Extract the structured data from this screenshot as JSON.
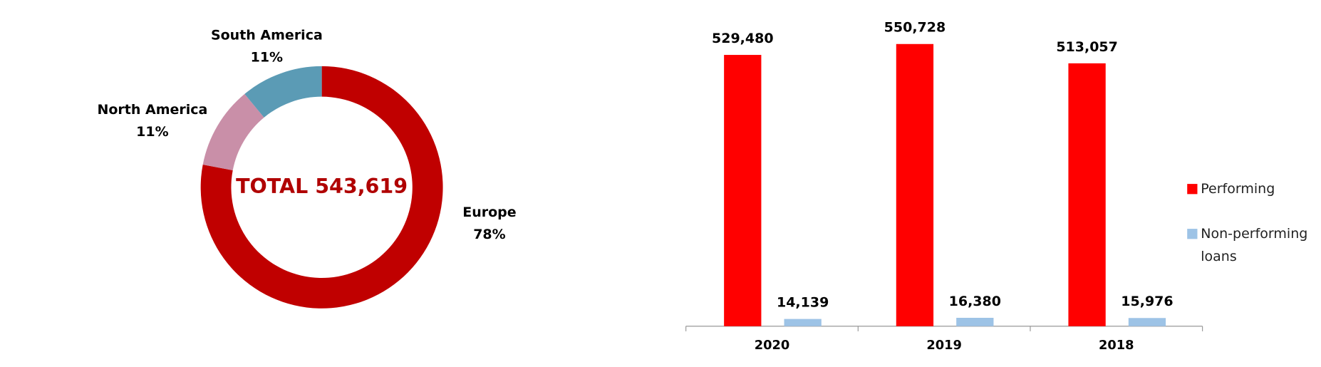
{
  "chart_data": [
    {
      "type": "donut",
      "center_label": "TOTAL 543,619",
      "categories": [
        "Europe",
        "North America",
        "South America"
      ],
      "values": [
        78,
        11,
        11
      ],
      "value_labels": [
        "78%",
        "11%",
        "11%"
      ],
      "colors": [
        "#c00000",
        "#c98fa8",
        "#5b9bb5"
      ]
    },
    {
      "type": "bar",
      "categories": [
        "2020",
        "2019",
        "2018"
      ],
      "series": [
        {
          "name": "Performing",
          "color": "#ff0000",
          "values": [
            529480,
            550728,
            513057
          ],
          "value_labels": [
            "529,480",
            "550,728",
            "513,057"
          ]
        },
        {
          "name": "Non-performing loans",
          "color": "#9dc3e6",
          "values": [
            14139,
            16380,
            15976
          ],
          "value_labels": [
            "14,139",
            "16,380",
            "15,976"
          ]
        }
      ],
      "ylim": [
        0,
        600000
      ],
      "legend": "right"
    }
  ]
}
